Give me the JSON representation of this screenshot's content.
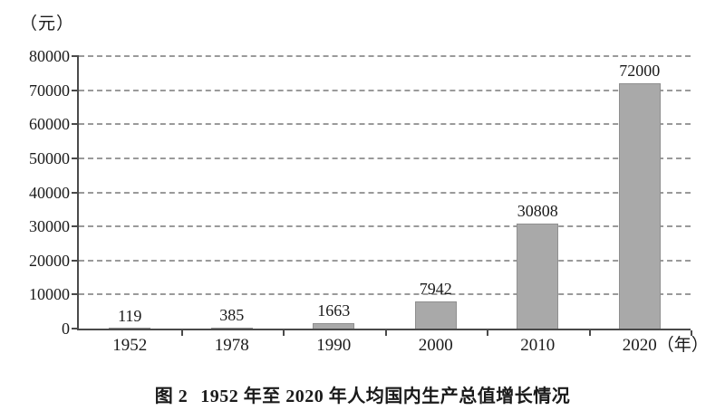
{
  "figure": {
    "unit_label": "（元）",
    "caption_prefix": "图 2",
    "caption_text": "1952 年至 2020 年人均国内生产总值增长情况"
  },
  "chart_data": {
    "type": "bar",
    "title": "图 2 1952 年至 2020 年人均国内生产总值增长情况",
    "categories": [
      "1952",
      "1978",
      "1990",
      "2000",
      "2010",
      "2020"
    ],
    "values": [
      119,
      385,
      1663,
      7942,
      30808,
      72000
    ],
    "data_labels": [
      "119",
      "385",
      "1663",
      "7942",
      "30808",
      "72000"
    ],
    "x_axis_suffix": "（年）",
    "ylabel": "（元）",
    "xlabel": "年",
    "ylim": [
      0,
      80000
    ],
    "y_ticks": [
      0,
      10000,
      20000,
      30000,
      40000,
      50000,
      60000,
      70000,
      80000
    ],
    "grid": "dashed horizontal",
    "legend": "none",
    "bar_color": "#a9a9a9",
    "bar_border_color": "#8f8f8f",
    "axis_color": "#4a4a4a",
    "grid_color": "#9a9a9a"
  }
}
